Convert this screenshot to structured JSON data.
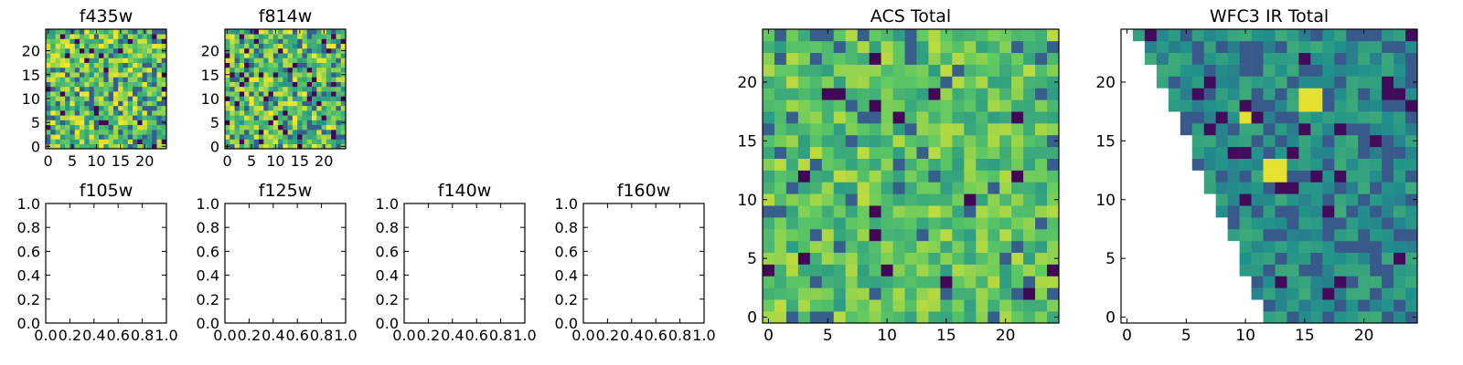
{
  "colormap": [
    "#440154",
    "#3b528b",
    "#21918c",
    "#5ec962",
    "#fde725"
  ],
  "chart_data": [
    {
      "type": "heatmap",
      "title": "f435w",
      "size": 25,
      "xlim": [
        -0.5,
        24.5
      ],
      "ylim": [
        -0.5,
        24.5
      ],
      "xticks": [
        "0",
        "5",
        "10",
        "15",
        "20"
      ],
      "yticks": [
        "0",
        "5",
        "10",
        "15",
        "20"
      ],
      "pattern": "noise",
      "seed": 435
    },
    {
      "type": "heatmap",
      "title": "f814w",
      "size": 25,
      "xlim": [
        -0.5,
        24.5
      ],
      "ylim": [
        -0.5,
        24.5
      ],
      "xticks": [
        "0",
        "5",
        "10",
        "15",
        "20"
      ],
      "yticks": [
        "0",
        "5",
        "10",
        "15",
        "20"
      ],
      "pattern": "noise",
      "seed": 814
    },
    {
      "type": "empty",
      "title": "f105w",
      "xlim": [
        0,
        1
      ],
      "ylim": [
        0,
        1
      ],
      "xticks": [
        "0.0",
        "0.2",
        "0.4",
        "0.6",
        "0.8",
        "1.0"
      ],
      "yticks": [
        "0.0",
        "0.2",
        "0.4",
        "0.6",
        "0.8",
        "1.0"
      ]
    },
    {
      "type": "empty",
      "title": "f125w",
      "xlim": [
        0,
        1
      ],
      "ylim": [
        0,
        1
      ],
      "xticks": [
        "0.0",
        "0.2",
        "0.4",
        "0.6",
        "0.8",
        "1.0"
      ],
      "yticks": [
        "0.0",
        "0.2",
        "0.4",
        "0.6",
        "0.8",
        "1.0"
      ]
    },
    {
      "type": "empty",
      "title": "f140w",
      "xlim": [
        0,
        1
      ],
      "ylim": [
        0,
        1
      ],
      "xticks": [
        "0.0",
        "0.2",
        "0.4",
        "0.6",
        "0.8",
        "1.0"
      ],
      "yticks": [
        "0.0",
        "0.2",
        "0.4",
        "0.6",
        "0.8",
        "1.0"
      ]
    },
    {
      "type": "empty",
      "title": "f160w",
      "xlim": [
        0,
        1
      ],
      "ylim": [
        0,
        1
      ],
      "xticks": [
        "0.0",
        "0.2",
        "0.4",
        "0.6",
        "0.8",
        "1.0"
      ],
      "yticks": [
        "0.0",
        "0.2",
        "0.4",
        "0.6",
        "0.8",
        "1.0"
      ]
    },
    {
      "type": "heatmap",
      "title": "ACS Total",
      "size": 25,
      "xlim": [
        -0.5,
        24.5
      ],
      "ylim": [
        -0.5,
        24.5
      ],
      "xticks": [
        "0",
        "5",
        "10",
        "15",
        "20"
      ],
      "yticks": [
        "0",
        "5",
        "10",
        "15",
        "20"
      ],
      "pattern": "smooth",
      "seed": 7
    },
    {
      "type": "heatmap",
      "title": "WFC3 IR Total",
      "size": 25,
      "xlim": [
        -0.5,
        24.5
      ],
      "ylim": [
        -0.5,
        24.5
      ],
      "xticks": [
        "0",
        "5",
        "10",
        "15",
        "20"
      ],
      "yticks": [
        "0",
        "5",
        "10",
        "15",
        "20"
      ],
      "pattern": "masked-wedge",
      "seed": 3,
      "hotspots": [
        [
          12,
          13
        ],
        [
          13,
          13
        ],
        [
          12,
          12
        ],
        [
          13,
          12
        ],
        [
          15,
          18
        ],
        [
          16,
          18
        ],
        [
          15,
          19
        ],
        [
          16,
          19
        ],
        [
          10,
          17
        ]
      ]
    }
  ]
}
